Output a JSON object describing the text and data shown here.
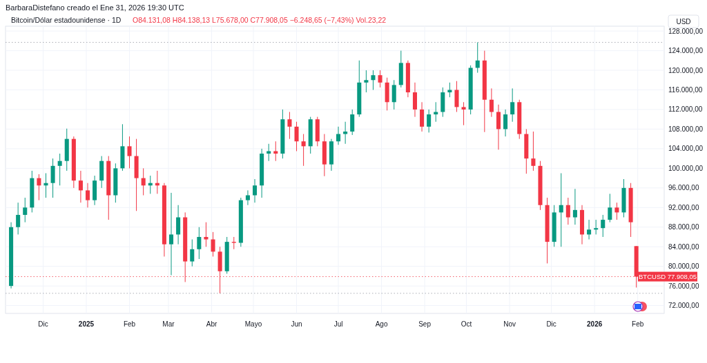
{
  "chart_data": {
    "type": "candlestick",
    "title": "Bitcoin/Dólar estadounidense · 1D",
    "subtitle": "O84.131,08 H84.138,13 L75.678,00 C77.908,05 −6.248,65 (−7,43%) Vol.23,22",
    "annotations": [
      "BarbaraDistefano creado el Ene 31, 2026 19:30 UTC"
    ],
    "ylabel": "USD",
    "colors": [
      "#089981",
      "#089981",
      "#089981",
      "#089981",
      "#f23645",
      "#089981",
      "#089981",
      "#089981",
      "#089981",
      "#f23645",
      "#f23645",
      "#f23645",
      "#089981",
      "#089981",
      "#f23645",
      "#089981",
      "#089981",
      "#f23645",
      "#f23645",
      "#f23645",
      "#089981",
      "#f23645",
      "#f23645",
      "#089981",
      "#089981",
      "#f23645",
      "#089981",
      "#089981",
      "#f23645",
      "#f23645",
      "#f23645",
      "#089981",
      "#f23645",
      "#089981",
      "#089981",
      "#089981",
      "#089981",
      "#089981",
      "#f23645",
      "#089981",
      "#f23645",
      "#f23645",
      "#f23645",
      "#089981",
      "#f23645",
      "#f23645",
      "#089981",
      "#089981",
      "#089981",
      "#089981",
      "#089981",
      "#089981",
      "#089981",
      "#f23645",
      "#f23645",
      "#089981",
      "#089981",
      "#f23645",
      "#f23645",
      "#f23645",
      "#089981",
      "#089981",
      "#089981",
      "#089981",
      "#f23645",
      "#f23645",
      "#089981",
      "#089981",
      "#f23645",
      "#f23645",
      "#f23645",
      "#089981",
      "#089981",
      "#f23645",
      "#f23645",
      "#f23645",
      "#f23645",
      "#f23645",
      "#089981",
      "#089981",
      "#f23645",
      "#089981",
      "#f23645",
      "#089981",
      "#089981",
      "#089981",
      "#089981",
      "#f23645",
      "#089981",
      "#f23645",
      "#f23645"
    ],
    "x": [
      "2024-11-08",
      "2024-11-13",
      "2024-11-18",
      "2024-11-23",
      "2024-11-28",
      "2024-12-03",
      "2024-12-08",
      "2024-12-13",
      "2024-12-18",
      "2024-12-23",
      "2024-12-28",
      "2025-01-02",
      "2025-01-07",
      "2025-01-12",
      "2025-01-17",
      "2025-01-22",
      "2025-01-27",
      "2025-02-01",
      "2025-02-06",
      "2025-02-11",
      "2025-02-16",
      "2025-02-21",
      "2025-02-26",
      "2025-03-03",
      "2025-03-08",
      "2025-03-13",
      "2025-03-18",
      "2025-03-23",
      "2025-03-28",
      "2025-04-02",
      "2025-04-07",
      "2025-04-12",
      "2025-04-17",
      "2025-04-22",
      "2025-04-27",
      "2025-05-02",
      "2025-05-07",
      "2025-05-12",
      "2025-05-17",
      "2025-05-22",
      "2025-05-27",
      "2025-06-01",
      "2025-06-06",
      "2025-06-11",
      "2025-06-16",
      "2025-06-21",
      "2025-06-26",
      "2025-07-01",
      "2025-07-06",
      "2025-07-11",
      "2025-07-16",
      "2025-07-21",
      "2025-07-26",
      "2025-07-31",
      "2025-08-05",
      "2025-08-10",
      "2025-08-15",
      "2025-08-20",
      "2025-08-25",
      "2025-08-30",
      "2025-09-04",
      "2025-09-09",
      "2025-09-14",
      "2025-09-19",
      "2025-09-24",
      "2025-09-29",
      "2025-10-04",
      "2025-10-09",
      "2025-10-14",
      "2025-10-19",
      "2025-10-24",
      "2025-10-29",
      "2025-11-03",
      "2025-11-08",
      "2025-11-13",
      "2025-11-18",
      "2025-11-23",
      "2025-11-28",
      "2025-12-03",
      "2025-12-08",
      "2025-12-13",
      "2025-12-18",
      "2025-12-23",
      "2025-12-28",
      "2026-01-02",
      "2026-01-07",
      "2026-01-12",
      "2026-01-17",
      "2026-01-22",
      "2026-01-27",
      "2026-01-31"
    ],
    "ohlc": [
      [
        76000,
        89000,
        75500,
        88000
      ],
      [
        88000,
        93000,
        86500,
        90500
      ],
      [
        90500,
        94000,
        89000,
        92000
      ],
      [
        92000,
        99500,
        91000,
        98000
      ],
      [
        98000,
        98800,
        93500,
        96500
      ],
      [
        96500,
        99000,
        94000,
        97000
      ],
      [
        97000,
        102000,
        94000,
        100500
      ],
      [
        100500,
        103000,
        96500,
        101500
      ],
      [
        101500,
        108100,
        99500,
        106000
      ],
      [
        106000,
        106500,
        96000,
        97500
      ],
      [
        97500,
        99500,
        93000,
        95500
      ],
      [
        95500,
        97000,
        92000,
        93500
      ],
      [
        93500,
        98500,
        92500,
        97500
      ],
      [
        97500,
        102500,
        96000,
        101500
      ],
      [
        101500,
        102500,
        89500,
        94500
      ],
      [
        94500,
        101000,
        93000,
        100000
      ],
      [
        100000,
        109000,
        99500,
        104500
      ],
      [
        104500,
        106500,
        100000,
        102500
      ],
      [
        102500,
        106000,
        91300,
        98000
      ],
      [
        98000,
        100000,
        94500,
        96500
      ],
      [
        96500,
        98500,
        94800,
        97000
      ],
      [
        97000,
        99500,
        94800,
        96500
      ],
      [
        96500,
        97000,
        82000,
        84500
      ],
      [
        84500,
        95000,
        78200,
        86500
      ],
      [
        86500,
        92500,
        84500,
        90000
      ],
      [
        90000,
        91000,
        76800,
        81000
      ],
      [
        81000,
        85500,
        80000,
        83500
      ],
      [
        83500,
        88000,
        81500,
        86000
      ],
      [
        86000,
        89000,
        84000,
        85500
      ],
      [
        85500,
        87000,
        82000,
        83000
      ],
      [
        83000,
        84000,
        74500,
        79000
      ],
      [
        79000,
        86000,
        78500,
        85000
      ],
      [
        85000,
        86000,
        83500,
        84800
      ],
      [
        84800,
        94000,
        84000,
        93500
      ],
      [
        93500,
        95500,
        92500,
        94500
      ],
      [
        94500,
        97800,
        93000,
        96500
      ],
      [
        96500,
        104000,
        94000,
        103000
      ],
      [
        103000,
        105000,
        101500,
        103500
      ],
      [
        103500,
        105500,
        101500,
        103000
      ],
      [
        103000,
        112000,
        102000,
        110000
      ],
      [
        110000,
        111500,
        106000,
        108500
      ],
      [
        108500,
        109500,
        103500,
        105500
      ],
      [
        105500,
        107000,
        100500,
        104500
      ],
      [
        104500,
        110500,
        103000,
        110000
      ],
      [
        110000,
        110500,
        104500,
        105500
      ],
      [
        105500,
        107000,
        98400,
        100800
      ],
      [
        100800,
        106000,
        99500,
        105500
      ],
      [
        105500,
        108500,
        104800,
        107000
      ],
      [
        107000,
        109500,
        105000,
        107500
      ],
      [
        107500,
        112000,
        106800,
        111000
      ],
      [
        111000,
        122000,
        110500,
        117500
      ],
      [
        117500,
        120000,
        115500,
        118000
      ],
      [
        118000,
        120000,
        116000,
        119000
      ],
      [
        119000,
        120000,
        116500,
        117500
      ],
      [
        117500,
        118500,
        111800,
        113500
      ],
      [
        113500,
        118000,
        112000,
        117000
      ],
      [
        117000,
        124000,
        116500,
        121500
      ],
      [
        121500,
        122000,
        114500,
        115500
      ],
      [
        115500,
        117500,
        110500,
        112000
      ],
      [
        112000,
        113500,
        107500,
        108500
      ],
      [
        108500,
        112000,
        107300,
        111000
      ],
      [
        111000,
        113500,
        109500,
        111500
      ],
      [
        111500,
        116500,
        110500,
        115500
      ],
      [
        115500,
        117500,
        114500,
        116000
      ],
      [
        116000,
        117800,
        111500,
        112500
      ],
      [
        112500,
        113500,
        108800,
        112000
      ],
      [
        112000,
        121000,
        111000,
        120500
      ],
      [
        120500,
        125700,
        119500,
        122000
      ],
      [
        122000,
        124000,
        107400,
        114000
      ],
      [
        114000,
        116300,
        110500,
        111500
      ],
      [
        111500,
        113000,
        103800,
        108000
      ],
      [
        108000,
        112000,
        106500,
        111000
      ],
      [
        111000,
        116300,
        109500,
        113500
      ],
      [
        113500,
        114000,
        106000,
        107000
      ],
      [
        107000,
        108000,
        98900,
        102000
      ],
      [
        102000,
        107500,
        99500,
        100500
      ],
      [
        100500,
        101500,
        91500,
        92500
      ],
      [
        92500,
        94000,
        80600,
        85000
      ],
      [
        85000,
        92500,
        84000,
        91000
      ],
      [
        91000,
        99000,
        84000,
        92500
      ],
      [
        92500,
        94000,
        88500,
        90000
      ],
      [
        90000,
        95800,
        88500,
        91500
      ],
      [
        91500,
        92500,
        84500,
        86500
      ],
      [
        86500,
        89500,
        85500,
        87500
      ],
      [
        87500,
        89500,
        86500,
        87800
      ],
      [
        87800,
        90500,
        86000,
        89500
      ],
      [
        89500,
        94800,
        89000,
        92000
      ],
      [
        92000,
        93000,
        89500,
        91000
      ],
      [
        91000,
        97800,
        90000,
        96000
      ],
      [
        96000,
        97000,
        86000,
        89000
      ],
      [
        84131.08,
        84138.13,
        75678,
        77908.05
      ]
    ],
    "xlim": [
      "2024-11-04",
      "2026-02-20"
    ],
    "xticks": [
      {
        "value": "2024-12-01",
        "label": "Dic"
      },
      {
        "value": "2025-01-01",
        "label": "2025"
      },
      {
        "value": "2025-02-01",
        "label": "Feb"
      },
      {
        "value": "2025-03-01",
        "label": "Mar"
      },
      {
        "value": "2025-04-01",
        "label": "Abr"
      },
      {
        "value": "2025-05-01",
        "label": "Mayo"
      },
      {
        "value": "2025-06-01",
        "label": "Jun"
      },
      {
        "value": "2025-07-01",
        "label": "Jul"
      },
      {
        "value": "2025-08-01",
        "label": "Ago"
      },
      {
        "value": "2025-09-01",
        "label": "Sep"
      },
      {
        "value": "2025-10-01",
        "label": "Oct"
      },
      {
        "value": "2025-11-01",
        "label": "Nov"
      },
      {
        "value": "2025-12-01",
        "label": "Dic"
      },
      {
        "value": "2026-01-01",
        "label": "2026"
      },
      {
        "value": "2026-02-01",
        "label": "Feb"
      }
    ],
    "ylim": [
      70400,
      129000
    ],
    "yticks": [
      {
        "value": 72000,
        "label": "72.000,00"
      },
      {
        "value": 76000,
        "label": "76.000,00"
      },
      {
        "value": 80000,
        "label": "80.000,00"
      },
      {
        "value": 84000,
        "label": "84.000,00"
      },
      {
        "value": 88000,
        "label": "88.000,00"
      },
      {
        "value": 92000,
        "label": "92.000,00"
      },
      {
        "value": 96000,
        "label": "96.000,00"
      },
      {
        "value": 100000,
        "label": "100.000,00"
      },
      {
        "value": 104000,
        "label": "104.000,00"
      },
      {
        "value": 108000,
        "label": "108.000,00"
      },
      {
        "value": 112000,
        "label": "112.000,00"
      },
      {
        "value": 116000,
        "label": "116.000,00"
      },
      {
        "value": 120000,
        "label": "120.000,00"
      },
      {
        "value": 124000,
        "label": "124.000,00"
      },
      {
        "value": 128000,
        "label": "128.000,00"
      }
    ],
    "grid": true,
    "ref_lines": [
      {
        "axis": "y",
        "value": 125700,
        "color": "#9598a1",
        "line_style": "dotted"
      },
      {
        "axis": "y",
        "value": 74500,
        "color": "#9598a1",
        "line_style": "dotted"
      },
      {
        "axis": "y",
        "value": 77908.05,
        "label": "BTCUSD 77.908,05",
        "color": "#f23645",
        "line_style": "dotted"
      }
    ]
  }
}
